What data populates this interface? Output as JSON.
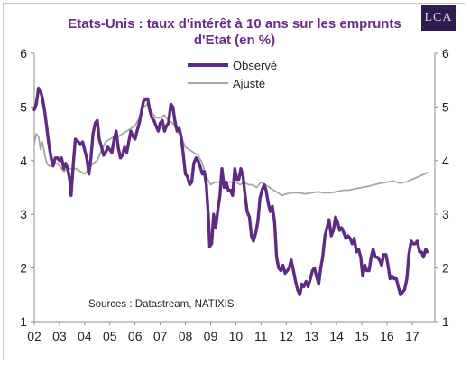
{
  "logo_text": "LCA",
  "chart_data": {
    "type": "line",
    "title_line1": "Etats-Unis : taux d'intérêt à 10 ans sur les emprunts",
    "title_line2": "d'Etat (en %)",
    "source": "Sources : Datastream, NATIXIS",
    "ylim": [
      1,
      6
    ],
    "xlim": [
      2002,
      2017.9
    ],
    "y_ticks": [
      "1",
      "2",
      "3",
      "4",
      "5",
      "6"
    ],
    "x_ticks": [
      "02",
      "03",
      "04",
      "05",
      "06",
      "07",
      "08",
      "09",
      "10",
      "11",
      "12",
      "13",
      "14",
      "15",
      "16",
      "17"
    ],
    "legend_position": "top-center",
    "grid": false,
    "series": [
      {
        "name": "Observé",
        "color": "#5e2a82",
        "points": [
          [
            2002.0,
            4.95
          ],
          [
            2002.08,
            5.05
          ],
          [
            2002.17,
            5.35
          ],
          [
            2002.25,
            5.3
          ],
          [
            2002.33,
            5.15
          ],
          [
            2002.42,
            4.9
          ],
          [
            2002.5,
            4.6
          ],
          [
            2002.58,
            4.3
          ],
          [
            2002.67,
            4.05
          ],
          [
            2002.75,
            3.9
          ],
          [
            2002.83,
            4.05
          ],
          [
            2002.92,
            4.05
          ],
          [
            2003.0,
            4.0
          ],
          [
            2003.08,
            4.05
          ],
          [
            2003.17,
            3.85
          ],
          [
            2003.25,
            3.95
          ],
          [
            2003.33,
            3.85
          ],
          [
            2003.42,
            3.6
          ],
          [
            2003.46,
            3.35
          ],
          [
            2003.55,
            3.95
          ],
          [
            2003.63,
            4.4
          ],
          [
            2003.75,
            4.35
          ],
          [
            2003.83,
            4.3
          ],
          [
            2003.92,
            4.35
          ],
          [
            2004.0,
            4.2
          ],
          [
            2004.08,
            4.05
          ],
          [
            2004.17,
            3.75
          ],
          [
            2004.25,
            4.05
          ],
          [
            2004.33,
            4.5
          ],
          [
            2004.42,
            4.7
          ],
          [
            2004.5,
            4.75
          ],
          [
            2004.58,
            4.4
          ],
          [
            2004.67,
            4.25
          ],
          [
            2004.75,
            4.1
          ],
          [
            2004.83,
            4.15
          ],
          [
            2004.92,
            4.25
          ],
          [
            2005.0,
            4.2
          ],
          [
            2005.08,
            4.15
          ],
          [
            2005.17,
            4.4
          ],
          [
            2005.25,
            4.55
          ],
          [
            2005.33,
            4.25
          ],
          [
            2005.42,
            4.05
          ],
          [
            2005.5,
            4.1
          ],
          [
            2005.58,
            4.25
          ],
          [
            2005.67,
            4.15
          ],
          [
            2005.75,
            4.35
          ],
          [
            2005.83,
            4.55
          ],
          [
            2005.92,
            4.45
          ],
          [
            2006.0,
            4.4
          ],
          [
            2006.08,
            4.55
          ],
          [
            2006.17,
            4.7
          ],
          [
            2006.25,
            4.9
          ],
          [
            2006.33,
            5.1
          ],
          [
            2006.42,
            5.15
          ],
          [
            2006.5,
            5.15
          ],
          [
            2006.58,
            4.95
          ],
          [
            2006.67,
            4.8
          ],
          [
            2006.75,
            4.75
          ],
          [
            2006.83,
            4.65
          ],
          [
            2006.92,
            4.55
          ],
          [
            2007.0,
            4.7
          ],
          [
            2007.08,
            4.75
          ],
          [
            2007.17,
            4.55
          ],
          [
            2007.25,
            4.65
          ],
          [
            2007.33,
            4.7
          ],
          [
            2007.42,
            5.05
          ],
          [
            2007.5,
            5.0
          ],
          [
            2007.58,
            4.75
          ],
          [
            2007.67,
            4.55
          ],
          [
            2007.75,
            4.6
          ],
          [
            2007.83,
            4.45
          ],
          [
            2007.92,
            4.1
          ],
          [
            2008.0,
            3.75
          ],
          [
            2008.08,
            3.7
          ],
          [
            2008.17,
            3.55
          ],
          [
            2008.25,
            3.6
          ],
          [
            2008.33,
            3.95
          ],
          [
            2008.42,
            4.05
          ],
          [
            2008.5,
            4.0
          ],
          [
            2008.58,
            3.9
          ],
          [
            2008.67,
            3.75
          ],
          [
            2008.75,
            3.8
          ],
          [
            2008.83,
            3.55
          ],
          [
            2008.92,
            2.9
          ],
          [
            2008.96,
            2.4
          ],
          [
            2009.04,
            2.45
          ],
          [
            2009.12,
            3.0
          ],
          [
            2009.2,
            2.75
          ],
          [
            2009.29,
            3.1
          ],
          [
            2009.37,
            3.35
          ],
          [
            2009.45,
            3.85
          ],
          [
            2009.54,
            3.5
          ],
          [
            2009.62,
            3.6
          ],
          [
            2009.7,
            3.45
          ],
          [
            2009.79,
            3.45
          ],
          [
            2009.87,
            3.35
          ],
          [
            2009.96,
            3.85
          ],
          [
            2010.04,
            3.65
          ],
          [
            2010.12,
            3.65
          ],
          [
            2010.2,
            3.85
          ],
          [
            2010.29,
            3.7
          ],
          [
            2010.37,
            3.35
          ],
          [
            2010.45,
            3.05
          ],
          [
            2010.54,
            2.95
          ],
          [
            2010.62,
            2.6
          ],
          [
            2010.7,
            2.5
          ],
          [
            2010.79,
            2.65
          ],
          [
            2010.87,
            2.85
          ],
          [
            2010.96,
            3.3
          ],
          [
            2011.04,
            3.45
          ],
          [
            2011.12,
            3.55
          ],
          [
            2011.2,
            3.45
          ],
          [
            2011.29,
            3.2
          ],
          [
            2011.37,
            3.05
          ],
          [
            2011.45,
            3.15
          ],
          [
            2011.54,
            2.85
          ],
          [
            2011.62,
            2.2
          ],
          [
            2011.7,
            2.0
          ],
          [
            2011.79,
            1.95
          ],
          [
            2011.87,
            2.05
          ],
          [
            2011.96,
            1.9
          ],
          [
            2012.04,
            1.95
          ],
          [
            2012.12,
            2.0
          ],
          [
            2012.2,
            2.15
          ],
          [
            2012.29,
            1.95
          ],
          [
            2012.37,
            1.75
          ],
          [
            2012.45,
            1.6
          ],
          [
            2012.54,
            1.5
          ],
          [
            2012.62,
            1.7
          ],
          [
            2012.7,
            1.65
          ],
          [
            2012.79,
            1.75
          ],
          [
            2012.87,
            1.65
          ],
          [
            2012.96,
            1.8
          ],
          [
            2013.04,
            1.95
          ],
          [
            2013.12,
            2.0
          ],
          [
            2013.2,
            1.85
          ],
          [
            2013.29,
            1.7
          ],
          [
            2013.37,
            2.0
          ],
          [
            2013.45,
            2.2
          ],
          [
            2013.54,
            2.6
          ],
          [
            2013.62,
            2.75
          ],
          [
            2013.7,
            2.9
          ],
          [
            2013.79,
            2.6
          ],
          [
            2013.87,
            2.7
          ],
          [
            2013.96,
            2.95
          ],
          [
            2014.04,
            2.85
          ],
          [
            2014.12,
            2.7
          ],
          [
            2014.2,
            2.75
          ],
          [
            2014.29,
            2.65
          ],
          [
            2014.37,
            2.55
          ],
          [
            2014.45,
            2.6
          ],
          [
            2014.54,
            2.55
          ],
          [
            2014.62,
            2.45
          ],
          [
            2014.7,
            2.55
          ],
          [
            2014.79,
            2.3
          ],
          [
            2014.87,
            2.35
          ],
          [
            2014.96,
            2.2
          ],
          [
            2015.04,
            1.85
          ],
          [
            2015.12,
            2.05
          ],
          [
            2015.2,
            1.95
          ],
          [
            2015.29,
            1.95
          ],
          [
            2015.37,
            2.2
          ],
          [
            2015.45,
            2.35
          ],
          [
            2015.54,
            2.2
          ],
          [
            2015.62,
            2.2
          ],
          [
            2015.7,
            2.15
          ],
          [
            2015.79,
            2.05
          ],
          [
            2015.87,
            2.25
          ],
          [
            2015.96,
            2.25
          ],
          [
            2016.04,
            2.05
          ],
          [
            2016.12,
            1.8
          ],
          [
            2016.2,
            1.85
          ],
          [
            2016.29,
            1.8
          ],
          [
            2016.37,
            1.8
          ],
          [
            2016.45,
            1.65
          ],
          [
            2016.54,
            1.5
          ],
          [
            2016.62,
            1.55
          ],
          [
            2016.7,
            1.6
          ],
          [
            2016.79,
            1.8
          ],
          [
            2016.87,
            2.25
          ],
          [
            2016.96,
            2.5
          ],
          [
            2017.04,
            2.45
          ],
          [
            2017.12,
            2.45
          ],
          [
            2017.2,
            2.5
          ],
          [
            2017.29,
            2.3
          ],
          [
            2017.37,
            2.3
          ],
          [
            2017.45,
            2.2
          ],
          [
            2017.54,
            2.35
          ],
          [
            2017.6,
            2.3
          ]
        ]
      },
      {
        "name": "Ajusté",
        "color": "#a6a6a6",
        "points": [
          [
            2002.0,
            4.3
          ],
          [
            2002.08,
            4.5
          ],
          [
            2002.17,
            4.45
          ],
          [
            2002.25,
            4.2
          ],
          [
            2002.33,
            4.35
          ],
          [
            2002.42,
            4.1
          ],
          [
            2002.5,
            3.95
          ],
          [
            2002.58,
            3.9
          ],
          [
            2002.67,
            3.9
          ],
          [
            2002.75,
            3.95
          ],
          [
            2002.83,
            3.95
          ],
          [
            2002.92,
            3.95
          ],
          [
            2003.0,
            3.9
          ],
          [
            2003.17,
            3.8
          ],
          [
            2003.33,
            3.85
          ],
          [
            2003.5,
            3.85
          ],
          [
            2003.67,
            3.85
          ],
          [
            2003.83,
            3.8
          ],
          [
            2004.0,
            3.75
          ],
          [
            2004.17,
            3.85
          ],
          [
            2004.33,
            3.95
          ],
          [
            2004.5,
            4.0
          ],
          [
            2004.67,
            4.2
          ],
          [
            2004.83,
            4.35
          ],
          [
            2005.0,
            4.4
          ],
          [
            2005.17,
            4.45
          ],
          [
            2005.33,
            4.45
          ],
          [
            2005.5,
            4.5
          ],
          [
            2005.67,
            4.55
          ],
          [
            2005.83,
            4.6
          ],
          [
            2006.0,
            4.65
          ],
          [
            2006.17,
            4.8
          ],
          [
            2006.33,
            5.0
          ],
          [
            2006.5,
            5.05
          ],
          [
            2006.67,
            4.9
          ],
          [
            2006.83,
            4.8
          ],
          [
            2007.0,
            4.8
          ],
          [
            2007.17,
            4.85
          ],
          [
            2007.33,
            4.75
          ],
          [
            2007.5,
            4.7
          ],
          [
            2007.67,
            4.55
          ],
          [
            2007.83,
            4.45
          ],
          [
            2008.0,
            4.25
          ],
          [
            2008.17,
            4.2
          ],
          [
            2008.33,
            4.15
          ],
          [
            2008.5,
            4.1
          ],
          [
            2008.67,
            3.95
          ],
          [
            2008.83,
            3.7
          ],
          [
            2009.0,
            3.55
          ],
          [
            2009.17,
            3.6
          ],
          [
            2009.33,
            3.6
          ],
          [
            2009.5,
            3.55
          ],
          [
            2009.67,
            3.6
          ],
          [
            2009.83,
            3.6
          ],
          [
            2010.0,
            3.6
          ],
          [
            2010.17,
            3.55
          ],
          [
            2010.33,
            3.6
          ],
          [
            2010.5,
            3.55
          ],
          [
            2010.67,
            3.55
          ],
          [
            2010.83,
            3.5
          ],
          [
            2011.0,
            3.6
          ],
          [
            2011.17,
            3.55
          ],
          [
            2011.33,
            3.5
          ],
          [
            2011.5,
            3.45
          ],
          [
            2011.67,
            3.4
          ],
          [
            2011.83,
            3.35
          ],
          [
            2012.0,
            3.38
          ],
          [
            2012.25,
            3.4
          ],
          [
            2012.5,
            3.4
          ],
          [
            2012.75,
            3.38
          ],
          [
            2013.0,
            3.4
          ],
          [
            2013.25,
            3.42
          ],
          [
            2013.5,
            3.4
          ],
          [
            2013.75,
            3.4
          ],
          [
            2014.0,
            3.42
          ],
          [
            2014.25,
            3.45
          ],
          [
            2014.5,
            3.45
          ],
          [
            2014.75,
            3.48
          ],
          [
            2015.0,
            3.5
          ],
          [
            2015.25,
            3.52
          ],
          [
            2015.5,
            3.55
          ],
          [
            2015.75,
            3.58
          ],
          [
            2016.0,
            3.6
          ],
          [
            2016.25,
            3.62
          ],
          [
            2016.5,
            3.58
          ],
          [
            2016.75,
            3.6
          ],
          [
            2017.0,
            3.65
          ],
          [
            2017.25,
            3.7
          ],
          [
            2017.5,
            3.75
          ],
          [
            2017.6,
            3.78
          ]
        ]
      }
    ]
  }
}
